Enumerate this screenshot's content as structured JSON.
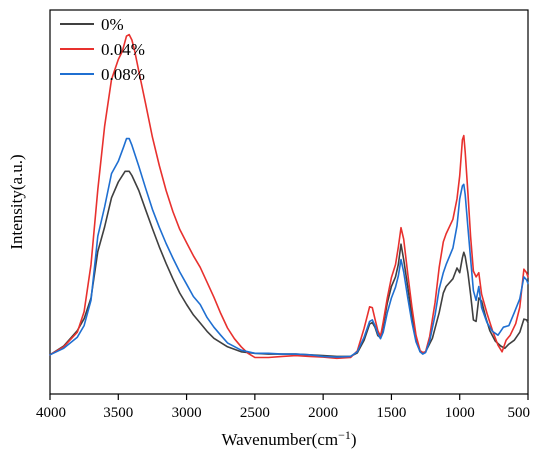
{
  "chart_data": {
    "type": "line",
    "title": "",
    "xlabel": "Wavenumber(cm",
    "xlabel_sup": "−1",
    "xlabel_close": ")",
    "ylabel": "Intensity(a.u.)",
    "xlim": [
      4000,
      500
    ],
    "x_reversed": true,
    "ylim": [
      0,
      1
    ],
    "y_ticks_shown": false,
    "x_ticks": [
      4000,
      3500,
      3000,
      2500,
      2000,
      1500,
      1000,
      500
    ],
    "x_tick_labels": [
      "4000",
      "3500",
      "3000",
      "2500",
      "2000",
      "1500",
      "1000",
      "500"
    ],
    "grid": false,
    "legend_position": "top-left",
    "series": [
      {
        "name": "0%",
        "color": "#404040",
        "points": [
          [
            4000,
            0.102
          ],
          [
            3900,
            0.125
          ],
          [
            3800,
            0.165
          ],
          [
            3750,
            0.196
          ],
          [
            3700,
            0.25
          ],
          [
            3650,
            0.371
          ],
          [
            3600,
            0.435
          ],
          [
            3550,
            0.511
          ],
          [
            3500,
            0.552
          ],
          [
            3450,
            0.58
          ],
          [
            3420,
            0.58
          ],
          [
            3400,
            0.569
          ],
          [
            3350,
            0.53
          ],
          [
            3300,
            0.48
          ],
          [
            3250,
            0.431
          ],
          [
            3200,
            0.383
          ],
          [
            3150,
            0.34
          ],
          [
            3100,
            0.3
          ],
          [
            3050,
            0.263
          ],
          [
            3000,
            0.233
          ],
          [
            2950,
            0.206
          ],
          [
            2900,
            0.185
          ],
          [
            2850,
            0.163
          ],
          [
            2800,
            0.145
          ],
          [
            2700,
            0.123
          ],
          [
            2600,
            0.11
          ],
          [
            2500,
            0.106
          ],
          [
            2400,
            0.104
          ],
          [
            2300,
            0.104
          ],
          [
            2200,
            0.104
          ],
          [
            2100,
            0.102
          ],
          [
            2000,
            0.1
          ],
          [
            1900,
            0.098
          ],
          [
            1800,
            0.098
          ],
          [
            1750,
            0.107
          ],
          [
            1700,
            0.14
          ],
          [
            1660,
            0.182
          ],
          [
            1640,
            0.186
          ],
          [
            1620,
            0.174
          ],
          [
            1600,
            0.152
          ],
          [
            1580,
            0.147
          ],
          [
            1560,
            0.178
          ],
          [
            1530,
            0.237
          ],
          [
            1500,
            0.28
          ],
          [
            1470,
            0.305
          ],
          [
            1450,
            0.337
          ],
          [
            1430,
            0.39
          ],
          [
            1410,
            0.35
          ],
          [
            1380,
            0.278
          ],
          [
            1350,
            0.203
          ],
          [
            1320,
            0.145
          ],
          [
            1290,
            0.11
          ],
          [
            1270,
            0.106
          ],
          [
            1250,
            0.11
          ],
          [
            1200,
            0.145
          ],
          [
            1150,
            0.212
          ],
          [
            1120,
            0.263
          ],
          [
            1100,
            0.28
          ],
          [
            1050,
            0.3
          ],
          [
            1020,
            0.328
          ],
          [
            1000,
            0.316
          ],
          [
            980,
            0.355
          ],
          [
            970,
            0.369
          ],
          [
            960,
            0.358
          ],
          [
            940,
            0.316
          ],
          [
            920,
            0.259
          ],
          [
            900,
            0.193
          ],
          [
            880,
            0.189
          ],
          [
            860,
            0.25
          ],
          [
            840,
            0.242
          ],
          [
            810,
            0.2
          ],
          [
            780,
            0.165
          ],
          [
            740,
            0.138
          ],
          [
            700,
            0.125
          ],
          [
            670,
            0.119
          ],
          [
            640,
            0.13
          ],
          [
            600,
            0.14
          ],
          [
            560,
            0.161
          ],
          [
            530,
            0.195
          ],
          [
            510,
            0.193
          ],
          [
            500,
            0.186
          ]
        ]
      },
      {
        "name": "0.04%",
        "color": "#e8312e",
        "points": [
          [
            4000,
            0.102
          ],
          [
            3900,
            0.123
          ],
          [
            3800,
            0.161
          ],
          [
            3750,
            0.214
          ],
          [
            3700,
            0.337
          ],
          [
            3650,
            0.532
          ],
          [
            3600,
            0.697
          ],
          [
            3550,
            0.819
          ],
          [
            3500,
            0.871
          ],
          [
            3470,
            0.893
          ],
          [
            3440,
            0.932
          ],
          [
            3420,
            0.936
          ],
          [
            3400,
            0.922
          ],
          [
            3380,
            0.893
          ],
          [
            3350,
            0.841
          ],
          [
            3300,
            0.756
          ],
          [
            3250,
            0.669
          ],
          [
            3200,
            0.595
          ],
          [
            3150,
            0.53
          ],
          [
            3100,
            0.475
          ],
          [
            3050,
            0.429
          ],
          [
            3000,
            0.394
          ],
          [
            2950,
            0.36
          ],
          [
            2900,
            0.33
          ],
          [
            2850,
            0.291
          ],
          [
            2800,
            0.252
          ],
          [
            2750,
            0.21
          ],
          [
            2700,
            0.172
          ],
          [
            2650,
            0.144
          ],
          [
            2600,
            0.123
          ],
          [
            2550,
            0.106
          ],
          [
            2500,
            0.095
          ],
          [
            2400,
            0.095
          ],
          [
            2300,
            0.098
          ],
          [
            2200,
            0.1
          ],
          [
            2100,
            0.098
          ],
          [
            2000,
            0.096
          ],
          [
            1900,
            0.093
          ],
          [
            1800,
            0.095
          ],
          [
            1750,
            0.112
          ],
          [
            1700,
            0.171
          ],
          [
            1660,
            0.227
          ],
          [
            1640,
            0.225
          ],
          [
            1620,
            0.195
          ],
          [
            1600,
            0.165
          ],
          [
            1580,
            0.15
          ],
          [
            1560,
            0.187
          ],
          [
            1530,
            0.25
          ],
          [
            1500,
            0.303
          ],
          [
            1470,
            0.337
          ],
          [
            1450,
            0.382
          ],
          [
            1430,
            0.433
          ],
          [
            1410,
            0.403
          ],
          [
            1380,
            0.312
          ],
          [
            1350,
            0.227
          ],
          [
            1320,
            0.153
          ],
          [
            1290,
            0.113
          ],
          [
            1270,
            0.108
          ],
          [
            1250,
            0.11
          ],
          [
            1220,
            0.15
          ],
          [
            1180,
            0.239
          ],
          [
            1150,
            0.33
          ],
          [
            1120,
            0.396
          ],
          [
            1100,
            0.417
          ],
          [
            1050,
            0.455
          ],
          [
            1020,
            0.508
          ],
          [
            1000,
            0.568
          ],
          [
            980,
            0.662
          ],
          [
            970,
            0.673
          ],
          [
            960,
            0.63
          ],
          [
            940,
            0.524
          ],
          [
            920,
            0.41
          ],
          [
            900,
            0.32
          ],
          [
            880,
            0.305
          ],
          [
            860,
            0.316
          ],
          [
            840,
            0.26
          ],
          [
            800,
            0.21
          ],
          [
            760,
            0.165
          ],
          [
            720,
            0.127
          ],
          [
            690,
            0.11
          ],
          [
            660,
            0.14
          ],
          [
            630,
            0.153
          ],
          [
            590,
            0.183
          ],
          [
            560,
            0.226
          ],
          [
            530,
            0.325
          ],
          [
            510,
            0.316
          ],
          [
            500,
            0.305
          ]
        ]
      },
      {
        "name": "0.08%",
        "color": "#1f6fd1",
        "points": [
          [
            4000,
            0.102
          ],
          [
            3900,
            0.119
          ],
          [
            3800,
            0.148
          ],
          [
            3750,
            0.178
          ],
          [
            3700,
            0.244
          ],
          [
            3650,
            0.411
          ],
          [
            3600,
            0.487
          ],
          [
            3550,
            0.574
          ],
          [
            3500,
            0.606
          ],
          [
            3460,
            0.644
          ],
          [
            3440,
            0.665
          ],
          [
            3420,
            0.665
          ],
          [
            3400,
            0.648
          ],
          [
            3350,
            0.593
          ],
          [
            3300,
            0.536
          ],
          [
            3250,
            0.481
          ],
          [
            3200,
            0.434
          ],
          [
            3150,
            0.392
          ],
          [
            3100,
            0.354
          ],
          [
            3050,
            0.318
          ],
          [
            3000,
            0.286
          ],
          [
            2950,
            0.254
          ],
          [
            2900,
            0.233
          ],
          [
            2850,
            0.199
          ],
          [
            2800,
            0.174
          ],
          [
            2750,
            0.153
          ],
          [
            2700,
            0.133
          ],
          [
            2600,
            0.114
          ],
          [
            2500,
            0.106
          ],
          [
            2400,
            0.106
          ],
          [
            2300,
            0.104
          ],
          [
            2200,
            0.104
          ],
          [
            2100,
            0.102
          ],
          [
            2000,
            0.098
          ],
          [
            1900,
            0.096
          ],
          [
            1800,
            0.098
          ],
          [
            1750,
            0.11
          ],
          [
            1700,
            0.148
          ],
          [
            1660,
            0.189
          ],
          [
            1640,
            0.193
          ],
          [
            1620,
            0.178
          ],
          [
            1600,
            0.157
          ],
          [
            1580,
            0.144
          ],
          [
            1560,
            0.161
          ],
          [
            1530,
            0.212
          ],
          [
            1500,
            0.25
          ],
          [
            1470,
            0.278
          ],
          [
            1450,
            0.307
          ],
          [
            1430,
            0.35
          ],
          [
            1410,
            0.318
          ],
          [
            1380,
            0.25
          ],
          [
            1350,
            0.187
          ],
          [
            1320,
            0.136
          ],
          [
            1290,
            0.11
          ],
          [
            1270,
            0.104
          ],
          [
            1250,
            0.108
          ],
          [
            1220,
            0.138
          ],
          [
            1180,
            0.206
          ],
          [
            1150,
            0.274
          ],
          [
            1120,
            0.316
          ],
          [
            1100,
            0.337
          ],
          [
            1050,
            0.38
          ],
          [
            1020,
            0.438
          ],
          [
            1000,
            0.508
          ],
          [
            980,
            0.542
          ],
          [
            970,
            0.546
          ],
          [
            960,
            0.519
          ],
          [
            940,
            0.434
          ],
          [
            920,
            0.352
          ],
          [
            900,
            0.269
          ],
          [
            880,
            0.244
          ],
          [
            860,
            0.28
          ],
          [
            840,
            0.225
          ],
          [
            800,
            0.186
          ],
          [
            760,
            0.163
          ],
          [
            720,
            0.153
          ],
          [
            680,
            0.174
          ],
          [
            640,
            0.178
          ],
          [
            600,
            0.212
          ],
          [
            560,
            0.248
          ],
          [
            530,
            0.305
          ],
          [
            510,
            0.297
          ],
          [
            500,
            0.288
          ]
        ]
      }
    ]
  }
}
